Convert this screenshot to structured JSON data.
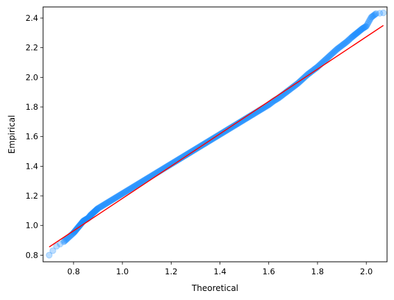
{
  "chart_data": {
    "type": "scatter",
    "title": "",
    "xlabel": "Theoretical",
    "ylabel": "Empirical",
    "xlim": [
      0.675,
      2.085
    ],
    "ylim": [
      0.755,
      2.475
    ],
    "xticks": [
      "0.8",
      "1.0",
      "1.2",
      "1.4",
      "1.6",
      "1.8",
      "2.0"
    ],
    "yticks": [
      "0.8",
      "1.0",
      "1.2",
      "1.4",
      "1.6",
      "1.8",
      "2.0",
      "2.2",
      "2.4"
    ],
    "grid": false,
    "colors": {
      "points": "#1e90ff",
      "line": "#ff0000"
    },
    "reference_line": {
      "x": [
        0.7,
        2.07
      ],
      "y": [
        0.855,
        2.35
      ]
    },
    "series": [
      {
        "values_x": [
          0.7,
          0.73,
          0.76,
          0.78,
          0.8,
          0.81,
          0.82,
          0.83,
          0.84,
          0.85,
          0.86,
          0.87,
          0.88,
          0.89,
          0.9,
          0.92,
          0.94,
          0.96,
          0.98,
          1.0,
          1.02,
          1.04,
          1.06,
          1.08,
          1.1,
          1.12,
          1.14,
          1.16,
          1.18,
          1.2,
          1.22,
          1.24,
          1.26,
          1.28,
          1.3,
          1.32,
          1.34,
          1.36,
          1.38,
          1.4,
          1.42,
          1.44,
          1.46,
          1.48,
          1.5,
          1.52,
          1.54,
          1.56,
          1.58,
          1.6,
          1.62,
          1.64,
          1.66,
          1.68,
          1.7,
          1.72,
          1.74,
          1.76,
          1.78,
          1.8,
          1.82,
          1.84,
          1.86,
          1.88,
          1.9,
          1.92,
          1.94,
          1.955,
          1.97,
          1.985,
          2.0,
          2.02,
          2.04,
          2.07
        ],
        "values_y": [
          0.8,
          0.86,
          0.89,
          0.92,
          0.95,
          0.97,
          0.99,
          1.01,
          1.03,
          1.04,
          1.05,
          1.07,
          1.085,
          1.1,
          1.115,
          1.135,
          1.155,
          1.175,
          1.195,
          1.215,
          1.235,
          1.255,
          1.275,
          1.295,
          1.315,
          1.335,
          1.355,
          1.375,
          1.395,
          1.415,
          1.435,
          1.455,
          1.475,
          1.495,
          1.515,
          1.535,
          1.555,
          1.575,
          1.595,
          1.615,
          1.635,
          1.655,
          1.675,
          1.695,
          1.715,
          1.735,
          1.755,
          1.775,
          1.795,
          1.815,
          1.84,
          1.86,
          1.885,
          1.91,
          1.935,
          1.96,
          1.99,
          2.02,
          2.045,
          2.07,
          2.1,
          2.13,
          2.16,
          2.19,
          2.215,
          2.24,
          2.27,
          2.29,
          2.31,
          2.33,
          2.345,
          2.405,
          2.43,
          2.435
        ]
      }
    ]
  }
}
